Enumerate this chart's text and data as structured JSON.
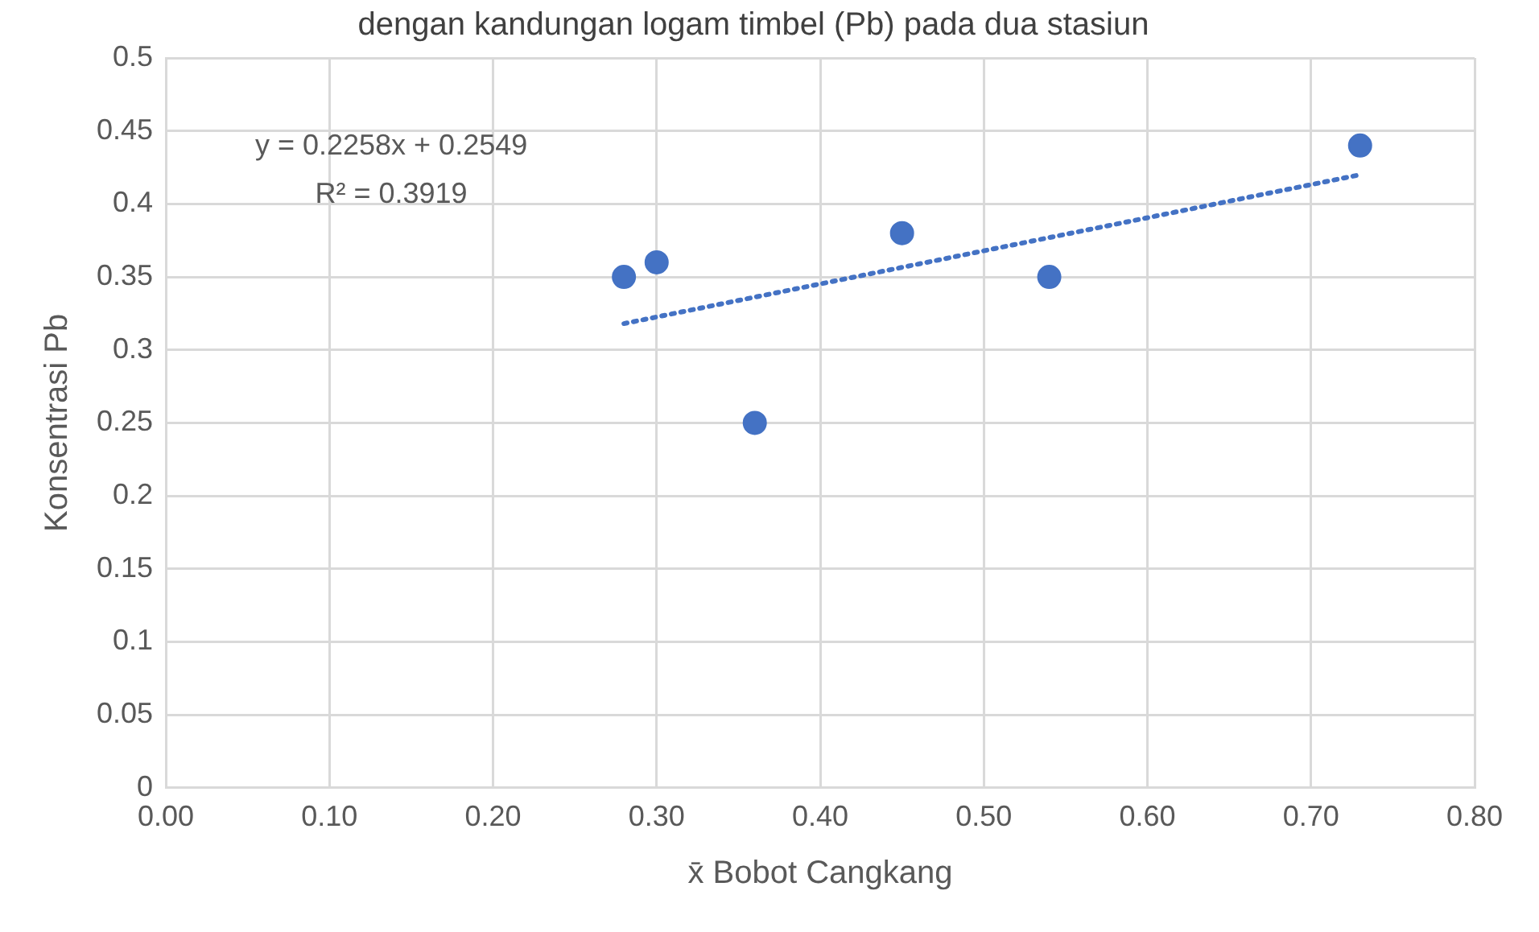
{
  "chart_data": {
    "type": "scatter",
    "title": "dengan kandungan logam timbel (Pb) pada dua stasiun",
    "xlabel": "x̄ Bobot Cangkang",
    "ylabel": "Konsentrasi Pb",
    "x": [
      0.28,
      0.3,
      0.36,
      0.45,
      0.54,
      0.73
    ],
    "series": [
      {
        "color": "#4472c4",
        "values": [
          0.35,
          0.36,
          0.25,
          0.38,
          0.35,
          0.44
        ],
        "marker": "circle"
      },
      {
        "type": "line",
        "color": "#4472c4",
        "x": [
          0.28,
          0.73
        ],
        "values": [
          0.318,
          0.42
        ],
        "line_style": "dotted",
        "marker": "none"
      }
    ],
    "xlim": [
      0,
      0.8
    ],
    "ylim": [
      0,
      0.5
    ],
    "xticks": [
      {
        "value": 0,
        "label": "0.00"
      },
      {
        "value": 0.1,
        "label": "0.10"
      },
      {
        "value": 0.2,
        "label": "0.20"
      },
      {
        "value": 0.3,
        "label": "0.30"
      },
      {
        "value": 0.4,
        "label": "0.40"
      },
      {
        "value": 0.5,
        "label": "0.50"
      },
      {
        "value": 0.6,
        "label": "0.60"
      },
      {
        "value": 0.7,
        "label": "0.70"
      },
      {
        "value": 0.8,
        "label": "0.80"
      }
    ],
    "yticks": [
      0,
      0.05,
      0.1,
      0.15,
      0.2,
      0.25,
      0.3,
      0.35,
      0.4,
      0.45,
      0.5
    ],
    "annotations": [
      "y = 0.2258x + 0.2549",
      "R² = 0.3919"
    ],
    "grid": true,
    "legend": false
  }
}
